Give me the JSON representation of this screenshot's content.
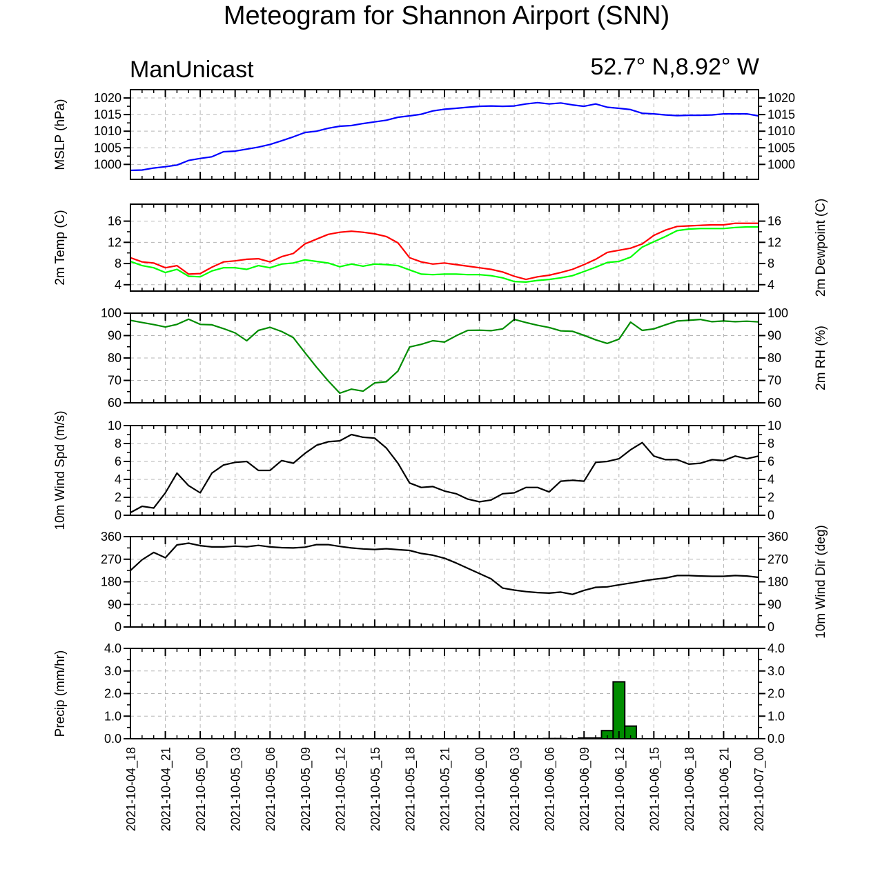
{
  "title": "Meteogram for Shannon Airport (SNN)",
  "left_label": "ManUnicast",
  "right_label": "52.7° N,8.92° W",
  "time_labels": [
    "2021-10-04_18",
    "2021-10-04_21",
    "2021-10-05_00",
    "2021-10-05_03",
    "2021-10-05_06",
    "2021-10-05_09",
    "2021-10-05_12",
    "2021-10-05_15",
    "2021-10-05_18",
    "2021-10-05_21",
    "2021-10-06_00",
    "2021-10-06_03",
    "2021-10-06_06",
    "2021-10-06_09",
    "2021-10-06_12",
    "2021-10-06_15",
    "2021-10-06_18",
    "2021-10-06_21",
    "2021-10-07_00"
  ],
  "colors": {
    "mslp": "#0000ff",
    "temp": "#ff0000",
    "dew": "#00ff00",
    "rh": "#008c00",
    "wind": "#000000",
    "precip": "#008c00"
  },
  "chart_data": [
    {
      "type": "line",
      "ylabel": "MSLP (hPa)",
      "ylim": [
        995.5,
        1022.5
      ],
      "yticks": [
        1000,
        1005,
        1010,
        1015,
        1020
      ],
      "ytick_labels": [
        "1000",
        "1005",
        "1010",
        "1015",
        "1020"
      ],
      "right_ticks": true,
      "grid": true,
      "x_hours": [
        0,
        1,
        2,
        3,
        4,
        5,
        6,
        7,
        8,
        9,
        10,
        11,
        12,
        13,
        14,
        15,
        16,
        17,
        18,
        19,
        20,
        21,
        22,
        23,
        24,
        25,
        26,
        27,
        28,
        29,
        30,
        31,
        32,
        33,
        34,
        35,
        36,
        37,
        38,
        39,
        40,
        41,
        42,
        43,
        44,
        45,
        46,
        47,
        48,
        49,
        50,
        51,
        52,
        53,
        54
      ],
      "series": [
        {
          "color": "mslp",
          "values": [
            998.2,
            998.3,
            998.9,
            999.3,
            999.8,
            1001.2,
            1001.8,
            1002.3,
            1003.8,
            1004.0,
            1004.6,
            1005.2,
            1006.0,
            1007.1,
            1008.3,
            1009.6,
            1010.0,
            1010.9,
            1011.5,
            1011.7,
            1012.3,
            1012.8,
            1013.3,
            1014.2,
            1014.6,
            1015.1,
            1016.1,
            1016.6,
            1016.9,
            1017.2,
            1017.5,
            1017.6,
            1017.5,
            1017.6,
            1018.2,
            1018.6,
            1018.2,
            1018.5,
            1017.9,
            1017.5,
            1018.2,
            1017.2,
            1016.9,
            1016.5,
            1015.4,
            1015.2,
            1014.9,
            1014.7,
            1014.8,
            1014.8,
            1014.9,
            1015.2,
            1015.2,
            1015.2,
            1014.6
          ]
        }
      ]
    },
    {
      "type": "line",
      "ylabel": "2m Temp (C)",
      "ylabel_right": "2m Dewpoint (C)",
      "ylim": [
        2.8,
        19.2
      ],
      "yticks": [
        4,
        8,
        12,
        16
      ],
      "ytick_labels": [
        "4",
        "8",
        "12",
        "16"
      ],
      "right_ticks": true,
      "grid": true,
      "x_hours": [
        0,
        1,
        2,
        3,
        4,
        5,
        6,
        7,
        8,
        9,
        10,
        11,
        12,
        13,
        14,
        15,
        16,
        17,
        18,
        19,
        20,
        21,
        22,
        23,
        24,
        25,
        26,
        27,
        28,
        29,
        30,
        31,
        32,
        33,
        34,
        35,
        36,
        37,
        38,
        39,
        40,
        41,
        42,
        43,
        44,
        45,
        46,
        47,
        48,
        49,
        50,
        51,
        52,
        53,
        54
      ],
      "series": [
        {
          "color": "temp",
          "values": [
            9.1,
            8.3,
            8.1,
            7.2,
            7.6,
            6.0,
            6.1,
            7.3,
            8.3,
            8.5,
            8.8,
            8.9,
            8.3,
            9.3,
            9.9,
            11.7,
            12.6,
            13.5,
            13.9,
            14.1,
            13.9,
            13.6,
            13.1,
            11.9,
            9.1,
            8.3,
            7.9,
            8.1,
            7.8,
            7.5,
            7.2,
            6.9,
            6.4,
            5.6,
            5.0,
            5.5,
            5.8,
            6.3,
            6.9,
            7.8,
            8.8,
            10.1,
            10.5,
            10.9,
            11.7,
            13.3,
            14.3,
            15.0,
            15.1,
            15.2,
            15.3,
            15.3,
            15.6,
            15.6,
            15.6
          ]
        },
        {
          "color": "dew",
          "values": [
            8.4,
            7.6,
            7.2,
            6.3,
            6.9,
            5.6,
            5.5,
            6.6,
            7.2,
            7.2,
            6.9,
            7.6,
            7.2,
            7.9,
            8.1,
            8.7,
            8.4,
            8.1,
            7.4,
            7.9,
            7.5,
            7.9,
            7.8,
            7.6,
            6.8,
            6.0,
            5.9,
            6.0,
            6.0,
            5.9,
            5.9,
            5.7,
            5.3,
            4.6,
            4.5,
            4.8,
            5.0,
            5.3,
            5.7,
            6.5,
            7.3,
            8.2,
            8.4,
            9.2,
            11.1,
            12.1,
            13.1,
            14.2,
            14.5,
            14.6,
            14.6,
            14.6,
            14.8,
            14.9,
            14.9
          ]
        }
      ]
    },
    {
      "type": "line",
      "ylabel": "2m RH (%)",
      "ylim": [
        60,
        100
      ],
      "yticks": [
        60,
        70,
        80,
        90,
        100
      ],
      "ytick_labels": [
        "60",
        "70",
        "80",
        "90",
        "100"
      ],
      "right_ticks": true,
      "right_tick_labels": true,
      "grid": true,
      "x_hours": [
        0,
        1,
        2,
        3,
        4,
        5,
        6,
        7,
        8,
        9,
        10,
        11,
        12,
        13,
        14,
        15,
        16,
        17,
        18,
        19,
        20,
        21,
        22,
        23,
        24,
        25,
        26,
        27,
        28,
        29,
        30,
        31,
        32,
        33,
        34,
        35,
        36,
        37,
        38,
        39,
        40,
        41,
        42,
        43,
        44,
        45,
        46,
        47,
        48,
        49,
        50,
        51,
        52,
        53,
        54
      ],
      "series": [
        {
          "color": "rh",
          "values": [
            96.8,
            95.8,
            94.9,
            93.8,
            95.0,
            97.3,
            95.0,
            94.8,
            93.1,
            91.2,
            87.7,
            92.3,
            93.7,
            91.8,
            89.1,
            82.4,
            75.9,
            69.8,
            64.3,
            66.1,
            65.2,
            68.9,
            69.4,
            74.2,
            84.9,
            86.1,
            87.7,
            87.1,
            89.9,
            92.3,
            92.4,
            92.2,
            93.0,
            97.2,
            95.8,
            94.6,
            93.6,
            92.1,
            91.9,
            90.1,
            88.1,
            86.5,
            88.4,
            96.0,
            92.3,
            93.0,
            94.8,
            96.5,
            96.8,
            97.2,
            96.2,
            96.5,
            96.2,
            96.4,
            96.1
          ]
        }
      ]
    },
    {
      "type": "line",
      "ylabel": "10m Wind Spd (m/s)",
      "ylim": [
        0,
        10
      ],
      "yticks": [
        0,
        2,
        4,
        6,
        8,
        10
      ],
      "ytick_labels": [
        "0",
        "2",
        "4",
        "6",
        "8",
        "10"
      ],
      "right_ticks": true,
      "right_tick_labels": true,
      "grid": true,
      "x_hours": [
        0,
        1,
        2,
        3,
        4,
        5,
        6,
        7,
        8,
        9,
        10,
        11,
        12,
        13,
        14,
        15,
        16,
        17,
        18,
        19,
        20,
        21,
        22,
        23,
        24,
        25,
        26,
        27,
        28,
        29,
        30,
        31,
        32,
        33,
        34,
        35,
        36,
        37,
        38,
        39,
        40,
        41,
        42,
        43,
        44,
        45,
        46,
        47,
        48,
        49,
        50,
        51,
        52,
        53,
        54
      ],
      "series": [
        {
          "color": "wind",
          "values": [
            0.3,
            1.0,
            0.8,
            2.5,
            4.7,
            3.3,
            2.5,
            4.7,
            5.6,
            5.9,
            6.0,
            5.0,
            5.0,
            6.1,
            5.8,
            6.9,
            7.8,
            8.2,
            8.3,
            9.0,
            8.7,
            8.6,
            7.5,
            5.8,
            3.6,
            3.1,
            3.2,
            2.7,
            2.4,
            1.8,
            1.5,
            1.7,
            2.4,
            2.5,
            3.1,
            3.1,
            2.6,
            3.8,
            3.9,
            3.8,
            5.9,
            6.0,
            6.3,
            7.3,
            8.1,
            6.6,
            6.2,
            6.2,
            5.7,
            5.8,
            6.2,
            6.1,
            6.6,
            6.3,
            6.6
          ]
        }
      ]
    },
    {
      "type": "line",
      "ylabel": "",
      "ylabel_right": "10m Wind Dir (deg)",
      "ylim": [
        0,
        360
      ],
      "yticks": [
        0,
        90,
        180,
        270,
        360
      ],
      "ytick_labels": [
        "0",
        "90",
        "180",
        "270",
        "360"
      ],
      "right_ticks": true,
      "right_tick_labels": true,
      "grid": true,
      "x_hours": [
        0,
        1,
        2,
        3,
        4,
        5,
        6,
        7,
        8,
        9,
        10,
        11,
        12,
        13,
        14,
        15,
        16,
        17,
        18,
        19,
        20,
        21,
        22,
        23,
        24,
        25,
        26,
        27,
        28,
        29,
        30,
        31,
        32,
        33,
        34,
        35,
        36,
        37,
        38,
        39,
        40,
        41,
        42,
        43,
        44,
        45,
        46,
        47,
        48,
        49,
        50,
        51,
        52,
        53,
        54
      ],
      "series": [
        {
          "color": "wind",
          "values": [
            225,
            268,
            297,
            276,
            327,
            334,
            324,
            319,
            319,
            322,
            320,
            325,
            319,
            316,
            315,
            318,
            328,
            328,
            321,
            315,
            311,
            309,
            312,
            308,
            305,
            293,
            286,
            274,
            255,
            234,
            213,
            192,
            155,
            147,
            141,
            137,
            135,
            139,
            130,
            146,
            158,
            160,
            168,
            175,
            183,
            190,
            195,
            205,
            205,
            203,
            202,
            202,
            205,
            203,
            198
          ]
        }
      ]
    },
    {
      "type": "bar",
      "ylabel": "Precip (mm/hr)",
      "ylim": [
        0,
        4
      ],
      "yticks": [
        0,
        1,
        2,
        3,
        4
      ],
      "ytick_labels": [
        "0.0",
        "1.0",
        "2.0",
        "3.0",
        "4.0"
      ],
      "right_ticks": true,
      "right_tick_labels": true,
      "grid": true,
      "bars": [
        {
          "hour": 36,
          "value": 0.01
        },
        {
          "hour": 37,
          "value": 0.01
        },
        {
          "hour": 39,
          "value": 0.03
        },
        {
          "hour": 40,
          "value": 0.03
        },
        {
          "hour": 41,
          "value": 0.36
        },
        {
          "hour": 42,
          "value": 2.52
        },
        {
          "hour": 43,
          "value": 0.56
        }
      ]
    }
  ]
}
